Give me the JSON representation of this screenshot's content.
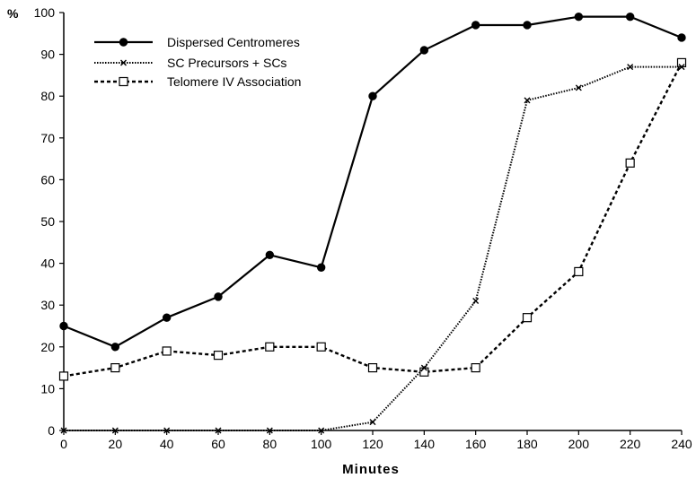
{
  "chart_data": {
    "type": "line",
    "title": "",
    "xlabel": "Minutes",
    "ylabel": "%",
    "x": [
      0,
      20,
      40,
      60,
      80,
      100,
      120,
      140,
      160,
      180,
      200,
      220,
      240
    ],
    "xlim": [
      0,
      240
    ],
    "ylim": [
      0,
      100
    ],
    "xticks": [
      "0",
      "20",
      "40",
      "60",
      "80",
      "100",
      "120",
      "140",
      "160",
      "180",
      "200",
      "220",
      "240"
    ],
    "yticks": [
      "0",
      "10",
      "20",
      "30",
      "40",
      "50",
      "60",
      "70",
      "80",
      "90",
      "100"
    ],
    "grid": false,
    "legend_position": "top-left",
    "series": [
      {
        "name": "Dispersed Centromeres",
        "line_style": "solid",
        "marker": "filled-circle",
        "values": [
          25,
          20,
          27,
          32,
          42,
          39,
          80,
          91,
          97,
          97,
          99,
          99,
          94
        ]
      },
      {
        "name": "SC Precursors + SCs",
        "line_style": "dotted",
        "marker": "x",
        "values": [
          0,
          0,
          0,
          0,
          0,
          0,
          2,
          15,
          31,
          79,
          82,
          87,
          87
        ]
      },
      {
        "name": "Telomere IV Association",
        "line_style": "dashed",
        "marker": "open-square",
        "values": [
          13,
          15,
          19,
          18,
          20,
          20,
          15,
          14,
          15,
          27,
          38,
          64,
          88
        ]
      }
    ]
  }
}
